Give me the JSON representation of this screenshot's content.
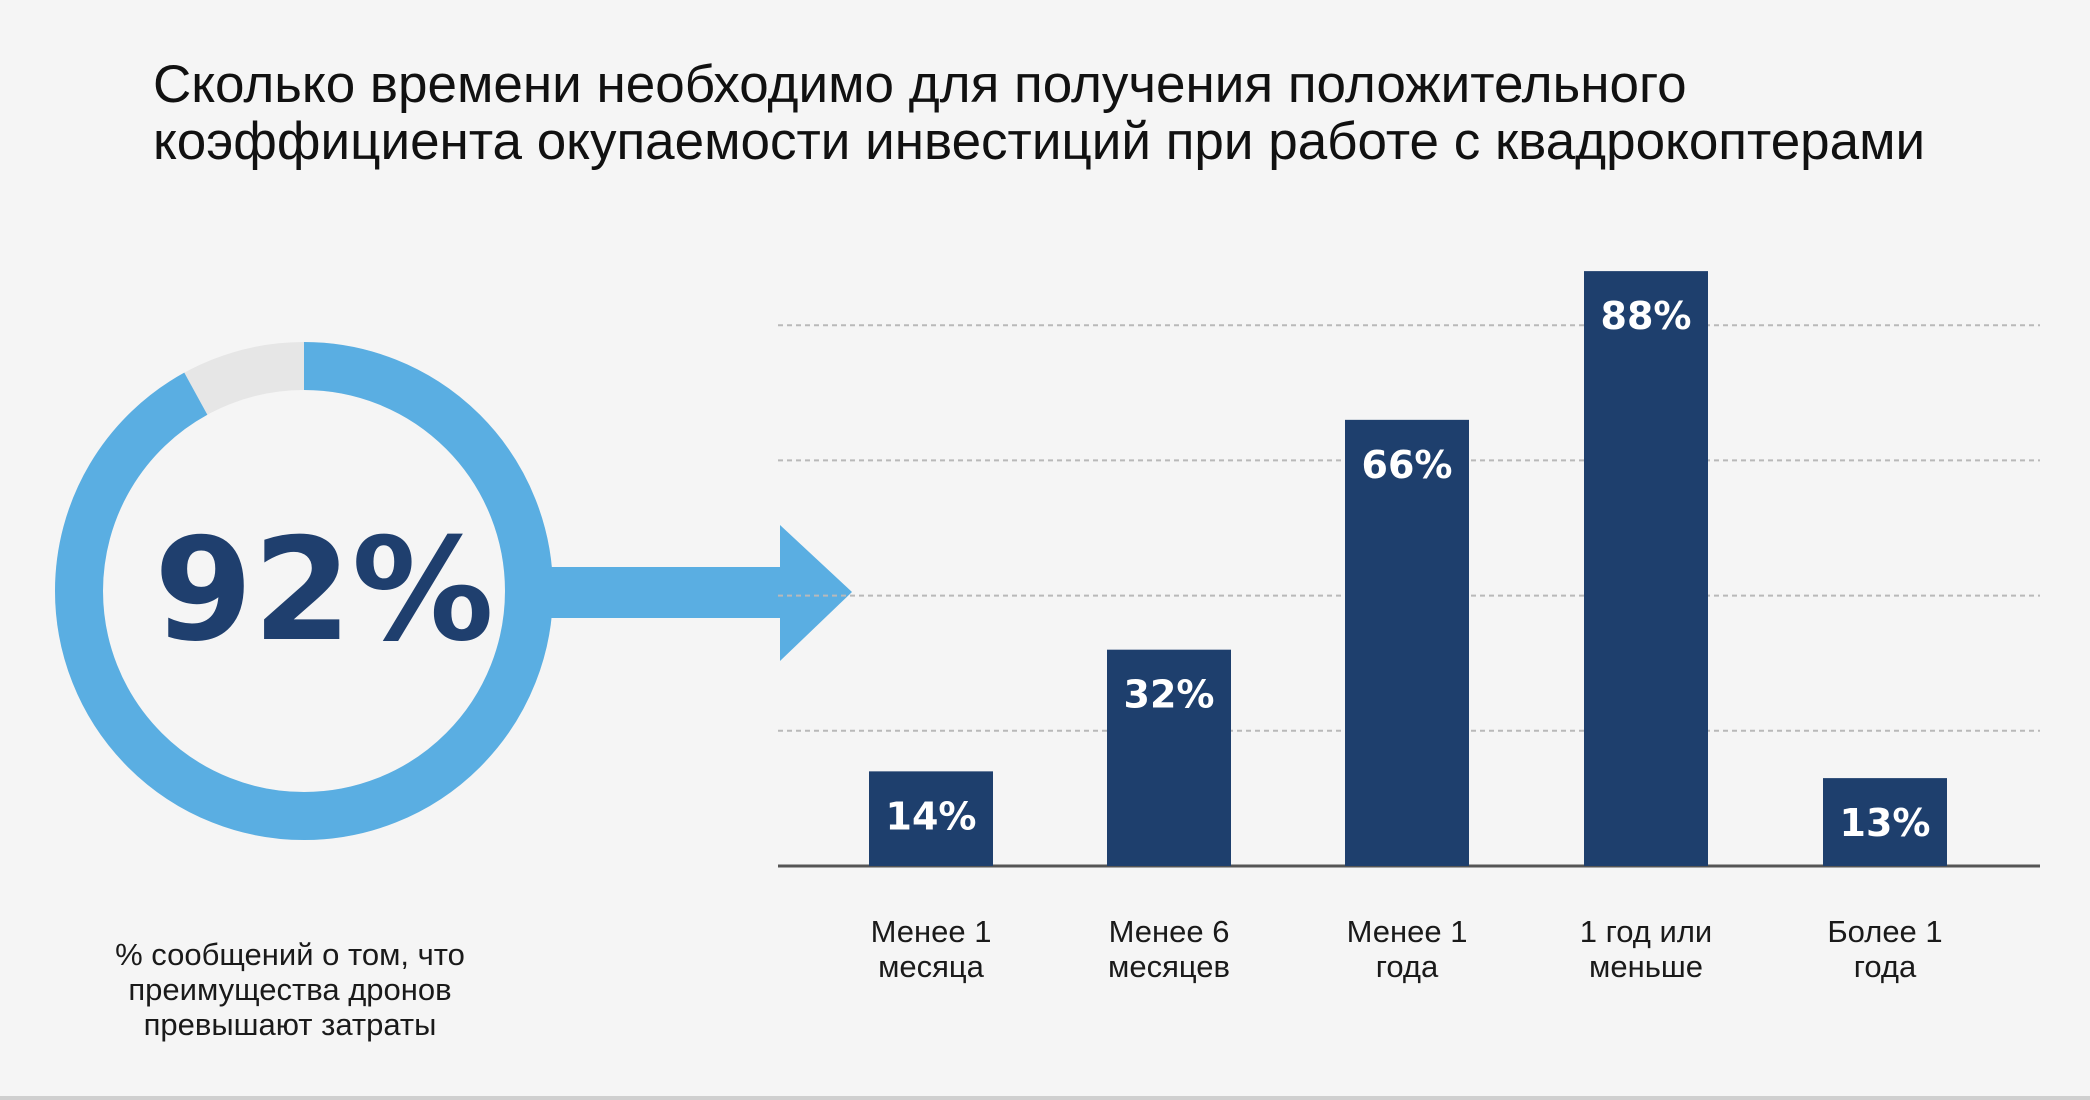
{
  "title": {
    "lines": [
      "Сколько времени необходимо для получения положительного",
      "коэффициента окупаемости инвестиций при работе с квадрокоптерами"
    ]
  },
  "donut": {
    "value": 92,
    "label": "92%",
    "caption_lines": [
      "% сообщений о том, что",
      "преимущества дронов",
      "превышают затраты"
    ],
    "colors": {
      "ring": "#5aaee2",
      "remainder": "#e6e6e6",
      "text": "#1f3f6e",
      "arrow": "#5aaee2"
    }
  },
  "chart_data": {
    "type": "bar",
    "categories": [
      [
        "Менее 1",
        "месяца"
      ],
      [
        "Менее 6",
        "месяцев"
      ],
      [
        "Менее 1",
        "года"
      ],
      [
        "1 год или",
        "меньше"
      ],
      [
        "Более 1",
        "года"
      ]
    ],
    "values": [
      14,
      32,
      66,
      88,
      13
    ],
    "data_labels": [
      "14%",
      "32%",
      "66%",
      "88%",
      "13%"
    ],
    "ylim": [
      0,
      100
    ],
    "grid": "dashed horizontal",
    "colors": {
      "bar": "#1e3f6d",
      "label": "#ffffff",
      "grid": "#b9b9b9",
      "baseline": "#555555"
    }
  }
}
